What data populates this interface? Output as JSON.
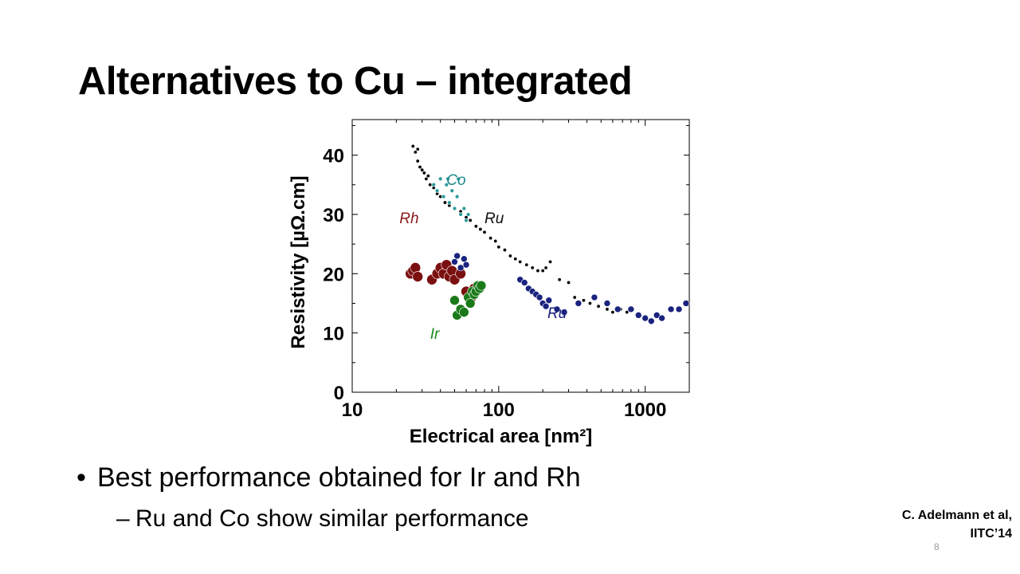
{
  "slide": {
    "title": "Alternatives to Cu – integrated",
    "bullet_marker": "•",
    "bullet_1": "Best performance obtained for Ir and Rh",
    "sub_marker": "–",
    "bullet_2": "Ru and Co show similar performance",
    "citation_line_1": "C. Adelmann et al,",
    "citation_line_2": "IITC’14",
    "slide_number": "8"
  },
  "chart_data": {
    "type": "scatter",
    "title": "",
    "xlabel": "Electrical area [nm²]",
    "ylabel": "Resistivity [µΩ.cm]",
    "x_scale": "log",
    "xlim": [
      10,
      2000
    ],
    "ylim": [
      0,
      46
    ],
    "x_ticks": [
      "10",
      "100",
      "1000"
    ],
    "y_ticks": [
      "0",
      "10",
      "20",
      "30",
      "40"
    ],
    "grid": false,
    "legend": "none",
    "annotations": [
      {
        "text": "Co",
        "x": 44,
        "y": 35,
        "color": "#1f8a8a"
      },
      {
        "text": "Rh",
        "x": 21,
        "y": 28.5,
        "color": "#8b1a1a"
      },
      {
        "text": "Ru",
        "x": 80,
        "y": 28.5,
        "color": "#111111"
      },
      {
        "text": "Ir",
        "x": 34,
        "y": 9,
        "color": "#1a8a1a"
      },
      {
        "text": "Ru",
        "x": 215,
        "y": 12.5,
        "color": "#1a237e"
      }
    ],
    "series": [
      {
        "color": "#000000",
        "points": [
          [
            26,
            41.5
          ],
          [
            27,
            40.5
          ],
          [
            28,
            41
          ],
          [
            28,
            39
          ],
          [
            29,
            38
          ],
          [
            30,
            37.5
          ],
          [
            31,
            37
          ],
          [
            32,
            36
          ],
          [
            33,
            36.5
          ],
          [
            34,
            35
          ],
          [
            36,
            34.5
          ],
          [
            38,
            33.5
          ],
          [
            40,
            33
          ],
          [
            43,
            32
          ],
          [
            46,
            31.5
          ],
          [
            50,
            31
          ],
          [
            55,
            30.5
          ],
          [
            60,
            29.5
          ],
          [
            64,
            29
          ],
          [
            70,
            28
          ],
          [
            75,
            27.5
          ],
          [
            80,
            27
          ],
          [
            88,
            26
          ],
          [
            95,
            25.5
          ],
          [
            100,
            24.5
          ],
          [
            110,
            24
          ],
          [
            120,
            23
          ],
          [
            130,
            22.5
          ],
          [
            140,
            22
          ],
          [
            155,
            21.5
          ],
          [
            170,
            21
          ],
          [
            185,
            20.5
          ],
          [
            200,
            20.5
          ],
          [
            210,
            21
          ],
          [
            225,
            22
          ],
          [
            260,
            19
          ],
          [
            300,
            18.5
          ],
          [
            330,
            16
          ],
          [
            380,
            15.5
          ],
          [
            420,
            15
          ],
          [
            480,
            14.5
          ],
          [
            550,
            14
          ],
          [
            600,
            13.5
          ],
          [
            680,
            14
          ],
          [
            750,
            13.5
          ]
        ]
      },
      {
        "color": "#2a9a9a",
        "points": [
          [
            36,
            35
          ],
          [
            38,
            34
          ],
          [
            40,
            36
          ],
          [
            42,
            33
          ],
          [
            44,
            35
          ],
          [
            46,
            32
          ],
          [
            48,
            34
          ],
          [
            50,
            31
          ],
          [
            52,
            33
          ],
          [
            55,
            30
          ],
          [
            58,
            31
          ],
          [
            60,
            29
          ],
          [
            62,
            30
          ],
          [
            45,
            36
          ],
          [
            53,
            36
          ]
        ]
      },
      {
        "color": "#7b1010",
        "points": [
          [
            25,
            20
          ],
          [
            26,
            20.5
          ],
          [
            27,
            21
          ],
          [
            28,
            19.5
          ],
          [
            35,
            19
          ],
          [
            38,
            20
          ],
          [
            40,
            21
          ],
          [
            42,
            20
          ],
          [
            44,
            21.5
          ],
          [
            46,
            19.5
          ],
          [
            48,
            20.5
          ],
          [
            50,
            19
          ],
          [
            55,
            20
          ],
          [
            60,
            17
          ],
          [
            65,
            16
          ],
          [
            68,
            17.5
          ]
        ]
      },
      {
        "color": "#1a7a1a",
        "points": [
          [
            50,
            15.5
          ],
          [
            52,
            13
          ],
          [
            55,
            14
          ],
          [
            58,
            13.5
          ],
          [
            62,
            16
          ],
          [
            64,
            15
          ],
          [
            66,
            17
          ],
          [
            68,
            16.5
          ],
          [
            70,
            17
          ],
          [
            72,
            18
          ],
          [
            74,
            17.5
          ],
          [
            76,
            18
          ]
        ]
      },
      {
        "color": "#1a237e",
        "points": [
          [
            50,
            22
          ],
          [
            52,
            23
          ],
          [
            55,
            21
          ],
          [
            58,
            22.5
          ],
          [
            60,
            21.5
          ],
          [
            140,
            19
          ],
          [
            150,
            18.5
          ],
          [
            160,
            17.5
          ],
          [
            170,
            17
          ],
          [
            180,
            16.5
          ],
          [
            190,
            16
          ],
          [
            200,
            15
          ],
          [
            210,
            14.5
          ],
          [
            220,
            15.5
          ],
          [
            250,
            14
          ],
          [
            280,
            13.5
          ],
          [
            350,
            15
          ],
          [
            450,
            16
          ],
          [
            550,
            15
          ],
          [
            650,
            14
          ],
          [
            800,
            14
          ],
          [
            900,
            13
          ],
          [
            1000,
            12.5
          ],
          [
            1100,
            12
          ],
          [
            1200,
            13
          ],
          [
            1300,
            12.5
          ],
          [
            1500,
            14
          ],
          [
            1700,
            14
          ],
          [
            1900,
            15
          ]
        ]
      }
    ]
  }
}
